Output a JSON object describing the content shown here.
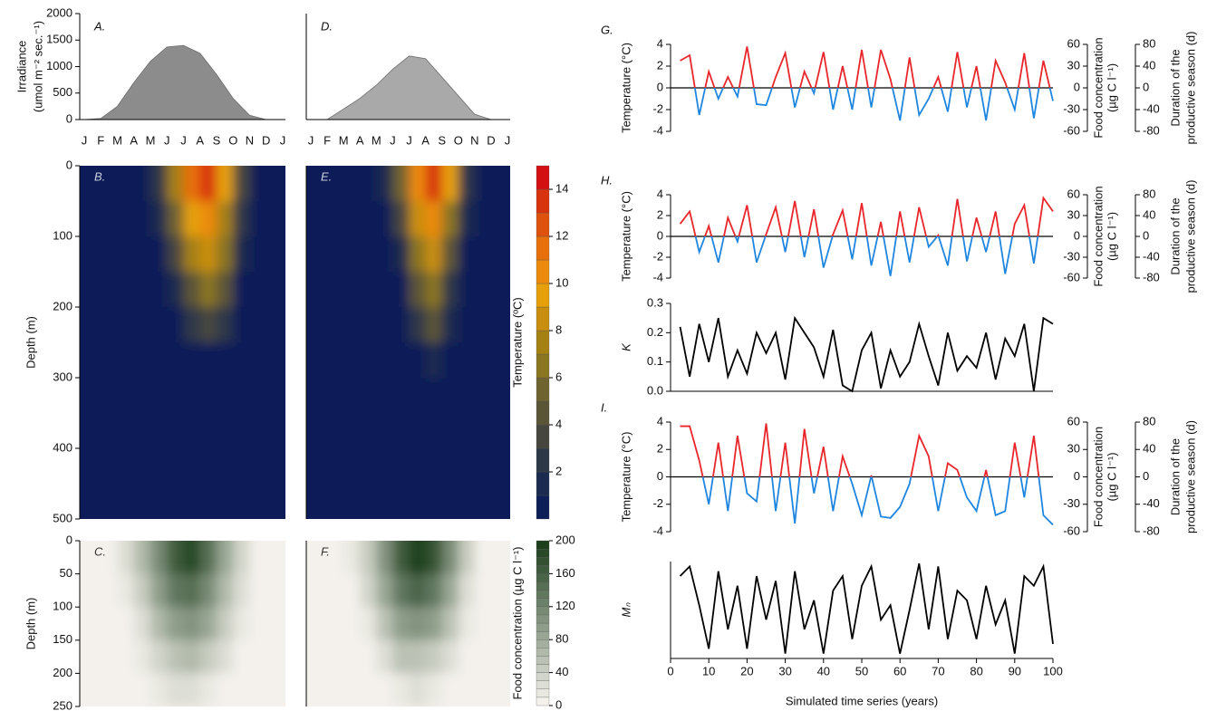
{
  "chart_data": [
    {
      "type": "area",
      "panel_label": "A.",
      "ylabel": [
        "Irradiance",
        "(umol m⁻² sec.⁻¹)"
      ],
      "categories": [
        "J",
        "F",
        "M",
        "A",
        "M",
        "J",
        "J",
        "A",
        "S",
        "O",
        "N",
        "D",
        "J"
      ],
      "values": [
        0,
        20,
        250,
        700,
        1100,
        1370,
        1400,
        1250,
        850,
        400,
        80,
        0,
        0
      ],
      "color": "#8c8c8c",
      "ylim": [
        0,
        2000
      ],
      "yticks": [
        0,
        500,
        1000,
        1500,
        2000
      ]
    },
    {
      "type": "area",
      "panel_label": "D.",
      "categories": [
        "J",
        "F",
        "M",
        "A",
        "M",
        "J",
        "J",
        "A",
        "S",
        "O",
        "N",
        "D",
        "J"
      ],
      "values": [
        0,
        0,
        200,
        400,
        650,
        950,
        1200,
        1150,
        800,
        450,
        100,
        0,
        0
      ],
      "color": "#a9a9a9",
      "ylim": [
        0,
        2000
      ]
    },
    {
      "type": "heatmap",
      "panel_label": "B.",
      "ylabel": "Depth (m)",
      "ylim": [
        500,
        0
      ],
      "yticks": [
        0,
        100,
        200,
        300,
        400,
        500
      ],
      "y": [
        25,
        75,
        125,
        175,
        225,
        275
      ],
      "z": [
        [
          0,
          0,
          0,
          0,
          2,
          7,
          11,
          13,
          9,
          3,
          0,
          0
        ],
        [
          0,
          0,
          0,
          0,
          1,
          5,
          9,
          10,
          7,
          2,
          0,
          0
        ],
        [
          0,
          0,
          0,
          0,
          0,
          3,
          7,
          8,
          6,
          1,
          0,
          0
        ],
        [
          0,
          0,
          0,
          0,
          0,
          1,
          4,
          6,
          4,
          0,
          0,
          0
        ],
        [
          0,
          0,
          0,
          0,
          0,
          0,
          2,
          3,
          2,
          0,
          0,
          0
        ],
        [
          0,
          0,
          0,
          0,
          0,
          0,
          0,
          0,
          0,
          0,
          0,
          0
        ]
      ]
    },
    {
      "type": "heatmap",
      "panel_label": "E.",
      "ylim": [
        500,
        0
      ],
      "y": [
        25,
        75,
        125,
        175,
        225,
        275
      ],
      "z": [
        [
          0,
          0,
          0,
          0,
          1,
          5,
          10,
          13,
          9,
          2,
          0,
          0
        ],
        [
          0,
          0,
          0,
          0,
          0,
          3,
          8,
          10,
          6,
          1,
          0,
          0
        ],
        [
          0,
          0,
          0,
          0,
          0,
          1,
          6,
          8,
          4,
          0,
          0,
          0
        ],
        [
          0,
          0,
          0,
          0,
          0,
          0,
          4,
          6,
          2,
          0,
          0,
          0
        ],
        [
          0,
          0,
          0,
          0,
          0,
          0,
          2,
          4,
          1,
          0,
          0,
          0
        ],
        [
          0,
          0,
          0,
          0,
          0,
          0,
          0,
          1,
          0,
          0,
          0,
          0
        ]
      ]
    },
    {
      "type": "heatmap",
      "panel_label": "C.",
      "ylabel": "Depth (m)",
      "ylim": [
        250,
        0
      ],
      "yticks": [
        0,
        50,
        100,
        150,
        200,
        250
      ],
      "y": [
        25,
        75,
        125,
        175,
        225
      ],
      "z": [
        [
          0,
          0,
          20,
          60,
          110,
          160,
          180,
          140,
          80,
          30,
          0,
          0
        ],
        [
          0,
          0,
          10,
          40,
          90,
          130,
          140,
          110,
          60,
          20,
          0,
          0
        ],
        [
          0,
          0,
          0,
          20,
          60,
          90,
          100,
          80,
          40,
          10,
          0,
          0
        ],
        [
          0,
          0,
          0,
          10,
          30,
          50,
          60,
          45,
          20,
          0,
          0,
          0
        ],
        [
          0,
          0,
          0,
          0,
          10,
          20,
          20,
          15,
          5,
          0,
          0,
          0
        ]
      ]
    },
    {
      "type": "heatmap",
      "panel_label": "F.",
      "ylim": [
        250,
        0
      ],
      "y": [
        25,
        75,
        125,
        175,
        225
      ],
      "z": [
        [
          0,
          0,
          10,
          40,
          100,
          160,
          190,
          170,
          110,
          40,
          0,
          0
        ],
        [
          0,
          0,
          5,
          30,
          80,
          130,
          150,
          130,
          80,
          25,
          0,
          0
        ],
        [
          0,
          0,
          0,
          15,
          50,
          90,
          100,
          90,
          50,
          10,
          0,
          0
        ],
        [
          0,
          0,
          0,
          5,
          25,
          50,
          55,
          45,
          20,
          0,
          0,
          0
        ],
        [
          0,
          0,
          0,
          0,
          5,
          15,
          20,
          15,
          5,
          0,
          0,
          0
        ]
      ]
    },
    {
      "type": "colorbar",
      "label": "Temperature (ºC)",
      "levels": [
        0,
        1,
        2,
        3,
        4,
        5,
        6,
        7,
        8,
        9,
        10,
        11,
        12,
        13,
        14,
        15
      ],
      "colors": [
        "#0c1f58",
        "#1b2b50",
        "#2e3948",
        "#46463f",
        "#5b5538",
        "#6f6430",
        "#8a7520",
        "#a58013",
        "#c98e0f",
        "#e5a00c",
        "#eb8a0c",
        "#e76f0c",
        "#df520e",
        "#d8330f",
        "#d40f14"
      ],
      "yticks": [
        2,
        4,
        6,
        8,
        10,
        12,
        14
      ]
    },
    {
      "type": "colorbar",
      "label": "Food concentration (µg C l⁻¹)",
      "levels": [
        0,
        10,
        20,
        30,
        40,
        50,
        60,
        70,
        80,
        90,
        100,
        110,
        120,
        130,
        140,
        150,
        160,
        170,
        180,
        190,
        200
      ],
      "colors": [
        "#f4f1ec",
        "#1d3f1c"
      ],
      "yticks": [
        0,
        40,
        80,
        120,
        160,
        200
      ]
    },
    {
      "type": "line",
      "panel_label": "G.",
      "ylabel": "Temperature (°C)",
      "zero_line": true,
      "color_above": "#e8262b",
      "color_below": "#1f86e0",
      "x": [
        2.5,
        5,
        7.5,
        10,
        12.5,
        15,
        17.5,
        20,
        22.5,
        25,
        27.5,
        30,
        32.5,
        35,
        37.5,
        40,
        42.5,
        45,
        47.5,
        50,
        52.5,
        55,
        57.5,
        60,
        62.5,
        65,
        67.5,
        70,
        72.5,
        75,
        77.5,
        80,
        82.5,
        85,
        87.5,
        90,
        92.5,
        95,
        97.5,
        100
      ],
      "values": [
        2.5,
        3,
        -2.5,
        1.5,
        -1,
        1,
        -0.8,
        3.8,
        -1.5,
        -1.6,
        1,
        3.2,
        -1.8,
        1.5,
        -0.5,
        3.3,
        -2,
        2,
        -2,
        3.5,
        -1.8,
        3.5,
        0.8,
        -3,
        2.8,
        -2.5,
        -1,
        1,
        -2.2,
        3.3,
        -1.8,
        2,
        -3,
        2.5,
        0.5,
        -2,
        3.2,
        -2.8,
        2.5,
        -1.2
      ],
      "xlim": [
        0,
        100
      ],
      "ylim": [
        -4,
        4
      ],
      "yticks": [
        -4,
        -2,
        0,
        2,
        4
      ],
      "y2label": [
        "Food concentration",
        "(µg C l⁻¹)"
      ],
      "y2lim": [
        -60,
        60
      ],
      "y2ticks": [
        -60,
        -30,
        0,
        30,
        60
      ],
      "y3label": [
        "Duration of the",
        "productive season (d)"
      ],
      "y3lim": [
        -80,
        80
      ],
      "y3ticks": [
        -80,
        -40,
        0,
        40,
        80
      ]
    },
    {
      "type": "line",
      "panel_label": "H.",
      "ylabel": "Temperature (°C)",
      "zero_line": true,
      "color_above": "#e8262b",
      "color_below": "#1f86e0",
      "x": [
        2.5,
        5,
        7.5,
        10,
        12.5,
        15,
        17.5,
        20,
        22.5,
        25,
        27.5,
        30,
        32.5,
        35,
        37.5,
        40,
        42.5,
        45,
        47.5,
        50,
        52.5,
        55,
        57.5,
        60,
        62.5,
        65,
        67.5,
        70,
        72.5,
        75,
        77.5,
        80,
        82.5,
        85,
        87.5,
        90,
        92.5,
        95,
        97.5,
        100
      ],
      "values": [
        1.2,
        2.4,
        -1.5,
        1,
        -2.5,
        1.8,
        -0.5,
        3,
        -2.5,
        0.2,
        2.8,
        -1.5,
        3.4,
        -2,
        2.6,
        -3,
        0.2,
        2.5,
        -2.2,
        3.2,
        -2.8,
        1.4,
        -3.8,
        2.4,
        -2.5,
        2.8,
        -1,
        0.1,
        -2.8,
        3.6,
        -2.4,
        1.8,
        -1.5,
        2.4,
        -3.6,
        1.2,
        3,
        -2.6,
        3.7,
        2.4
      ],
      "xlim": [
        0,
        100
      ],
      "ylim": [
        -4,
        4
      ],
      "yticks": [
        -4,
        -2,
        0,
        2,
        4
      ],
      "y2label": [
        "Food concentration",
        "(µg C l⁻¹)"
      ],
      "y2lim": [
        -60,
        60
      ],
      "y2ticks": [
        -60,
        -30,
        0,
        30,
        60
      ],
      "y3label": [
        "Duration of the",
        "productive season (d)"
      ],
      "y3lim": [
        -80,
        80
      ],
      "y3ticks": [
        -80,
        -40,
        0,
        40,
        80
      ]
    },
    {
      "type": "line",
      "ylabel": "K",
      "color": "#000000",
      "x": [
        2.5,
        5,
        7.5,
        10,
        12.5,
        15,
        17.5,
        20,
        22.5,
        25,
        27.5,
        30,
        32.5,
        35,
        37.5,
        40,
        42.5,
        45,
        47.5,
        50,
        52.5,
        55,
        57.5,
        60,
        62.5,
        65,
        67.5,
        70,
        72.5,
        75,
        77.5,
        80,
        82.5,
        85,
        87.5,
        90,
        92.5,
        95,
        97.5,
        100
      ],
      "values": [
        0.22,
        0.05,
        0.23,
        0.1,
        0.25,
        0.05,
        0.14,
        0.06,
        0.2,
        0.13,
        0.2,
        0.04,
        0.25,
        0.2,
        0.15,
        0.05,
        0.21,
        0.02,
        0,
        0.14,
        0.2,
        0.01,
        0.14,
        0.05,
        0.1,
        0.23,
        0.12,
        0.02,
        0.2,
        0.07,
        0.12,
        0.08,
        0.2,
        0.04,
        0.18,
        0.12,
        0.23,
        0,
        0.25,
        0.23
      ],
      "xlim": [
        0,
        100
      ],
      "ylim": [
        0,
        0.3
      ],
      "yticks": [
        {
          "value": 0,
          "label": "0.0"
        },
        0.1,
        0.2,
        0.3
      ]
    },
    {
      "type": "line",
      "panel_label": "I.",
      "ylabel": "Temperature (°C)",
      "zero_line": true,
      "color_above": "#e8262b",
      "color_below": "#1f86e0",
      "x": [
        2.5,
        5,
        7.5,
        10,
        12.5,
        15,
        17.5,
        20,
        22.5,
        25,
        27.5,
        30,
        32.5,
        35,
        37.5,
        40,
        42.5,
        45,
        47.5,
        50,
        52.5,
        55,
        57.5,
        60,
        62.5,
        65,
        67.5,
        70,
        72.5,
        75,
        77.5,
        80,
        82.5,
        85,
        87.5,
        90,
        92.5,
        95,
        97.5,
        100
      ],
      "values": [
        3.7,
        3.7,
        1.2,
        -2,
        2.5,
        -2.5,
        3,
        -1.2,
        -1.8,
        3.9,
        -2.5,
        2.5,
        -3.4,
        3.5,
        -1.2,
        2.2,
        -2.5,
        1.5,
        -0.5,
        -2.8,
        0.1,
        -2.9,
        -3,
        -2.2,
        -0.5,
        3,
        1.5,
        -2.5,
        1,
        0.5,
        -1.5,
        -2.5,
        0.5,
        -2.8,
        -2.5,
        2.5,
        -1.5,
        3,
        -2.8,
        -3.5
      ],
      "xlim": [
        0,
        100
      ],
      "ylim": [
        -4,
        4
      ],
      "yticks": [
        -4,
        -2,
        0,
        2,
        4
      ],
      "y2label": [
        "Food concentration",
        "(µg C l⁻¹)"
      ],
      "y2lim": [
        -60,
        60
      ],
      "y2ticks": [
        -60,
        -30,
        0,
        30,
        60
      ],
      "y3label": [
        "Duration of the",
        "productive season (d)"
      ],
      "y3lim": [
        -80,
        80
      ],
      "y3ticks": [
        -80,
        -40,
        0,
        40,
        80
      ]
    },
    {
      "type": "line",
      "ylabel": "Mₙ",
      "color": "#000000",
      "x": [
        2.5,
        5,
        7.5,
        10,
        12.5,
        15,
        17.5,
        20,
        22.5,
        25,
        27.5,
        30,
        32.5,
        35,
        37.5,
        40,
        42.5,
        45,
        47.5,
        50,
        52.5,
        55,
        57.5,
        60,
        62.5,
        65,
        67.5,
        70,
        72.5,
        75,
        77.5,
        80,
        82.5,
        85,
        87.5,
        90,
        92.5,
        95,
        97.5,
        100
      ],
      "values": [
        0.85,
        0.95,
        0.55,
        0.1,
        0.9,
        0.3,
        0.75,
        0.1,
        0.85,
        0.4,
        0.8,
        0.05,
        0.9,
        0.3,
        0.6,
        0.05,
        0.7,
        0.85,
        0.2,
        0.75,
        0.95,
        0.4,
        0.55,
        0.05,
        0.5,
        0.98,
        0.3,
        0.95,
        0.2,
        0.7,
        0.6,
        0.2,
        0.75,
        0.35,
        0.6,
        0.05,
        0.85,
        0.75,
        0.95,
        0.15
      ],
      "xlim": [
        0,
        100
      ],
      "ylim": [
        0,
        1
      ],
      "xticks": [
        0,
        10,
        20,
        30,
        40,
        50,
        60,
        70,
        80,
        90,
        100
      ],
      "xlabel": "Simulated time series (years)"
    }
  ]
}
